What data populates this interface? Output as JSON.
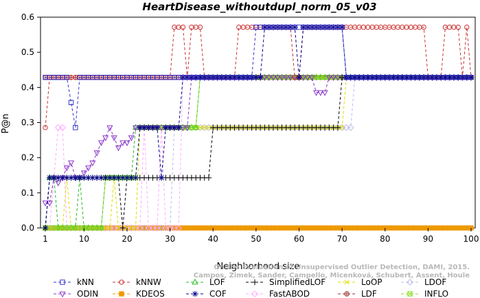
{
  "chart_data": {
    "type": "line",
    "title": "HeartDisease_withoutdupl_norm_05_v03",
    "xlabel": "Neighborhood size",
    "ylabel": "P@n",
    "xlim": [
      1,
      100
    ],
    "ylim": [
      0,
      0.6
    ],
    "x_ticks": [
      1,
      10,
      20,
      30,
      40,
      50,
      60,
      70,
      80,
      90,
      100
    ],
    "y_ticks": [
      0.0,
      0.1,
      0.2,
      0.3,
      0.4,
      0.5,
      0.6
    ],
    "x_tick_labels": [
      "1",
      "10",
      "20",
      "30",
      "40",
      "50",
      "60",
      "70",
      "80",
      "90",
      "100"
    ],
    "y_tick_labels": [
      "0.0",
      "0.1",
      "0.2",
      "0.3",
      "0.4",
      "0.5",
      "0.6"
    ],
    "grid": false,
    "legend_position": "bottom",
    "credit": "Campos, Zimek, Sander, Campello, Micenková, Schubert, Assent, Houle",
    "credit_line1": "On the Evaluation of Unsupervised Outlier Detection, DAMI, 2015.",
    "series": [
      {
        "name": "kNN",
        "color": "#3333cc",
        "marker": "square",
        "dash": "4,3",
        "segments": [
          [
            1,
            0.4286
          ],
          [
            6,
            0.4286
          ],
          [
            7,
            0.3571
          ],
          [
            8,
            0.2857
          ],
          [
            9,
            0.4286
          ],
          [
            49,
            0.4286
          ],
          [
            50,
            0.5714
          ],
          [
            70,
            0.5714
          ],
          [
            71,
            0.4286
          ],
          [
            100,
            0.4286
          ]
        ]
      },
      {
        "name": "kNNW",
        "color": "#cc3333",
        "marker": "circle",
        "dash": "4,3",
        "segments": [
          [
            1,
            0.2857
          ],
          [
            2,
            0.4286
          ],
          [
            30,
            0.4286
          ],
          [
            31,
            0.5714
          ],
          [
            33,
            0.5714
          ],
          [
            34,
            0.4286
          ],
          [
            35,
            0.5714
          ],
          [
            37,
            0.5714
          ],
          [
            38,
            0.4286
          ],
          [
            45,
            0.4286
          ],
          [
            46,
            0.5714
          ],
          [
            58,
            0.5714
          ],
          [
            59,
            0.4286
          ],
          [
            61,
            0.5714
          ],
          [
            89,
            0.5714
          ],
          [
            90,
            0.4286
          ],
          [
            93,
            0.4286
          ],
          [
            94,
            0.5714
          ],
          [
            97,
            0.5714
          ],
          [
            98,
            0.4286
          ],
          [
            99,
            0.5714
          ],
          [
            100,
            0.4286
          ]
        ]
      },
      {
        "name": "LOF",
        "color": "#22bb22",
        "marker": "triangle-up",
        "dash": "4,3",
        "segments": [
          [
            1,
            0.0
          ],
          [
            2,
            0.1429
          ],
          [
            3,
            0.1429
          ],
          [
            4,
            0.0
          ],
          [
            8,
            0.0
          ],
          [
            9,
            0.1429
          ],
          [
            10,
            0.0
          ],
          [
            14,
            0.0
          ],
          [
            15,
            0.1429
          ],
          [
            21,
            0.1429
          ],
          [
            22,
            0.2857
          ],
          [
            36,
            0.2857
          ],
          [
            37,
            0.4286
          ],
          [
            100,
            0.4286
          ]
        ]
      },
      {
        "name": "SimplifiedLOF",
        "color": "#000000",
        "marker": "plus",
        "dash": "4,3",
        "segments": [
          [
            1,
            0.0
          ],
          [
            2,
            0.1429
          ],
          [
            18,
            0.1429
          ],
          [
            19,
            0.0
          ],
          [
            20,
            0.1429
          ],
          [
            39,
            0.1429
          ],
          [
            40,
            0.2857
          ],
          [
            69,
            0.2857
          ],
          [
            70,
            0.4286
          ],
          [
            100,
            0.4286
          ]
        ]
      },
      {
        "name": "LoOP",
        "color": "#dddd00",
        "marker": "cross",
        "dash": "4,3",
        "segments": [
          [
            1,
            0.0
          ],
          [
            5,
            0.0
          ],
          [
            6,
            0.1429
          ],
          [
            7,
            0.0
          ],
          [
            16,
            0.0
          ],
          [
            17,
            0.1429
          ],
          [
            18,
            0.0
          ],
          [
            22,
            0.0
          ],
          [
            23,
            0.2857
          ],
          [
            70,
            0.2857
          ],
          [
            71,
            0.4286
          ],
          [
            100,
            0.4286
          ]
        ]
      },
      {
        "name": "LDOF",
        "color": "#bbbbee",
        "marker": "diamond",
        "dash": "4,3",
        "segments": [
          [
            1,
            0.0
          ],
          [
            30,
            0.0
          ],
          [
            31,
            0.2857
          ],
          [
            72,
            0.2857
          ],
          [
            73,
            0.4286
          ],
          [
            100,
            0.4286
          ]
        ]
      },
      {
        "name": "ODIN",
        "color": "#8833cc",
        "marker": "triangle-down",
        "dash": "4,3",
        "segments": [
          [
            1,
            0.0714
          ],
          [
            2,
            0.0714
          ],
          [
            3,
            0.1429
          ],
          [
            4,
            0.1286
          ],
          [
            5,
            0.1429
          ],
          [
            6,
            0.1714
          ],
          [
            7,
            0.1857
          ],
          [
            8,
            0.1429
          ],
          [
            10,
            0.1571
          ],
          [
            11,
            0.1714
          ],
          [
            12,
            0.1857
          ],
          [
            13,
            0.2143
          ],
          [
            14,
            0.2429
          ],
          [
            15,
            0.2571
          ],
          [
            16,
            0.2857
          ],
          [
            17,
            0.2571
          ],
          [
            18,
            0.2286
          ],
          [
            19,
            0.2429
          ],
          [
            20,
            0.2429
          ],
          [
            21,
            0.2571
          ],
          [
            22,
            0.2857
          ],
          [
            34,
            0.2857
          ],
          [
            35,
            0.4286
          ],
          [
            63,
            0.4286
          ],
          [
            64,
            0.3857
          ],
          [
            66,
            0.3857
          ],
          [
            67,
            0.4286
          ],
          [
            100,
            0.4286
          ]
        ]
      },
      {
        "name": "KDEOS",
        "color": "#ee9900",
        "marker": "square-filled",
        "dash": "4,3",
        "segments": [
          [
            1,
            0.0
          ],
          [
            100,
            0.0
          ]
        ]
      },
      {
        "name": "COF",
        "color": "#000088",
        "marker": "star",
        "dash": "4,3",
        "segments": [
          [
            1,
            0.0
          ],
          [
            2,
            0.1429
          ],
          [
            10,
            0.1429
          ],
          [
            11,
            0.1429
          ],
          [
            22,
            0.1429
          ],
          [
            23,
            0.2857
          ],
          [
            27,
            0.2857
          ],
          [
            28,
            0.1429
          ],
          [
            29,
            0.2857
          ],
          [
            32,
            0.2857
          ],
          [
            33,
            0.4286
          ],
          [
            51,
            0.4286
          ],
          [
            52,
            0.5714
          ],
          [
            59,
            0.5714
          ],
          [
            60,
            0.4286
          ],
          [
            61,
            0.5714
          ],
          [
            70,
            0.5714
          ],
          [
            71,
            0.4286
          ],
          [
            100,
            0.4286
          ]
        ]
      },
      {
        "name": "FastABOD",
        "color": "#ffaaff",
        "marker": "diamond-open",
        "dash": "4,3",
        "segments": [
          [
            1,
            0.0
          ],
          [
            3,
            0.1429
          ],
          [
            4,
            0.2857
          ],
          [
            5,
            0.2857
          ],
          [
            6,
            0.0
          ],
          [
            23,
            0.0
          ],
          [
            24,
            0.2857
          ],
          [
            25,
            0.0
          ],
          [
            27,
            0.0
          ],
          [
            28,
            0.2857
          ],
          [
            29,
            0.0
          ],
          [
            32,
            0.0
          ],
          [
            33,
            0.4286
          ],
          [
            100,
            0.4286
          ]
        ]
      },
      {
        "name": "LDF",
        "color": "#993333",
        "marker": "circle-plus",
        "dash": "4,3",
        "segments": [
          [
            1,
            0.4286
          ],
          [
            16,
            0.4286
          ],
          [
            17,
            0.4286
          ],
          [
            52,
            0.4286
          ],
          [
            53,
            0.4286
          ],
          [
            100,
            0.4286
          ]
        ]
      },
      {
        "name": "INFLO",
        "color": "#88dd22",
        "marker": "square-x",
        "dash": "4,3",
        "segments": [
          [
            1,
            0.0
          ],
          [
            14,
            0.0
          ],
          [
            15,
            0.1429
          ],
          [
            22,
            0.1429
          ],
          [
            23,
            0.2857
          ],
          [
            36,
            0.2857
          ],
          [
            37,
            0.4286
          ],
          [
            100,
            0.4286
          ]
        ]
      }
    ]
  }
}
